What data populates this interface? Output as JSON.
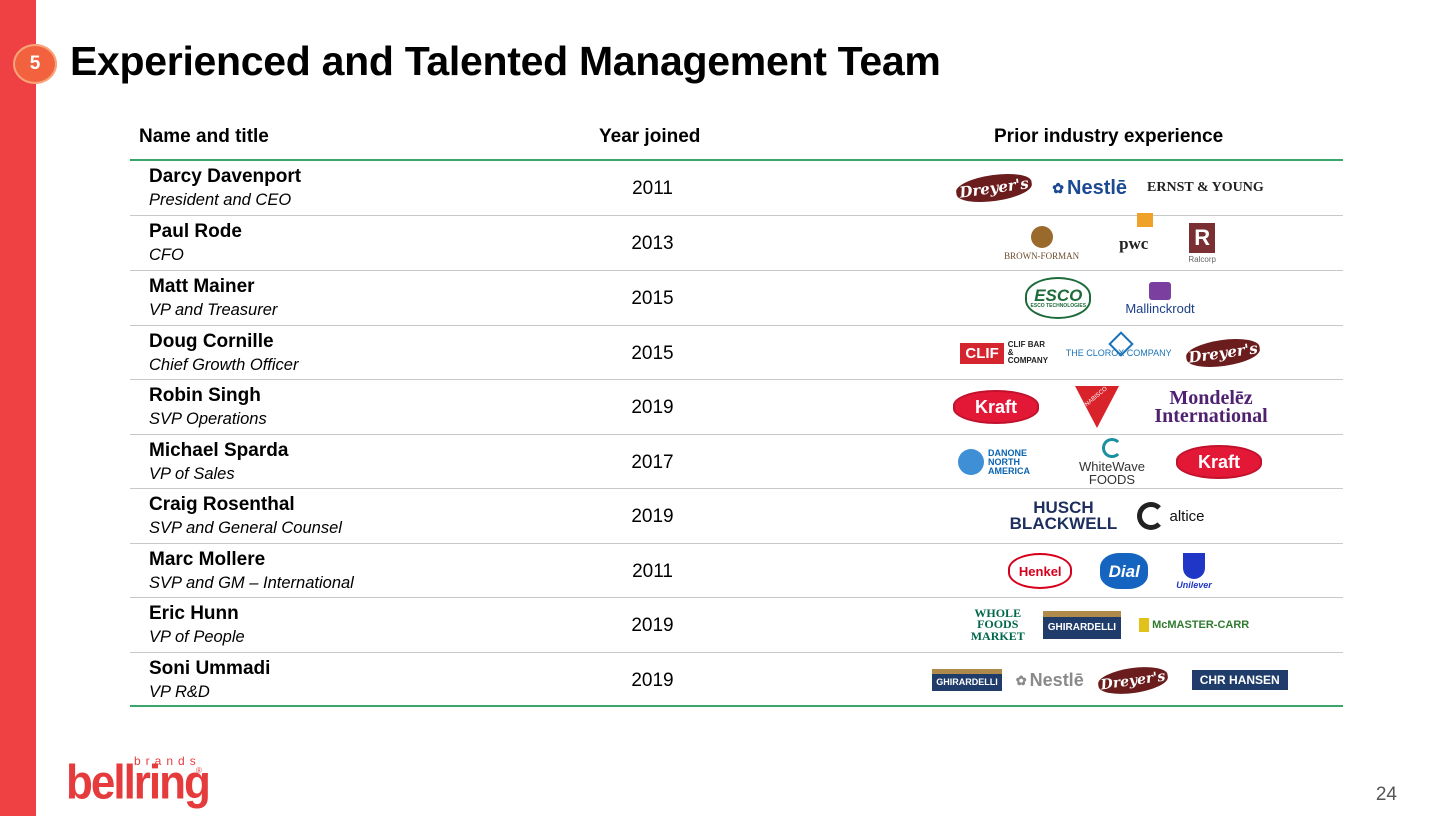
{
  "slide": {
    "section_number": "5",
    "title": "Experienced and Talented Management Team",
    "page_number": "24",
    "brand": {
      "word": "bellring",
      "sub": "brands",
      "mark": "®"
    }
  },
  "table": {
    "headers": [
      "Name and title",
      "Year joined",
      "Prior industry experience"
    ],
    "rows": [
      {
        "name": "Darcy Davenport",
        "title": "President and CEO",
        "year": "2011",
        "logos": [
          "Dreyer's",
          "Nestlē",
          "ERNST & YOUNG"
        ]
      },
      {
        "name": "Paul Rode",
        "title": "CFO",
        "year": "2013",
        "logos": [
          "BROWN-FORMAN",
          "pwc",
          "Ralcorp"
        ]
      },
      {
        "name": "Matt Mainer",
        "title": "VP and Treasurer",
        "year": "2015",
        "logos": [
          "ESCO TECHNOLOGIES",
          "Mallinckrodt"
        ]
      },
      {
        "name": "Doug Cornille",
        "title": "Chief Growth Officer",
        "year": "2015",
        "logos": [
          "CLIF",
          "CLIF BAR & COMPANY",
          "THE CLOROX COMPANY",
          "Dreyer's"
        ]
      },
      {
        "name": "Robin Singh",
        "title": "SVP Operations",
        "year": "2019",
        "logos": [
          "Kraft",
          "NABISCO",
          "Mondelēz International"
        ]
      },
      {
        "name": "Michael Sparda",
        "title": "VP of Sales",
        "year": "2017",
        "logos": [
          "DANONE NORTH AMERICA",
          "WhiteWave FOODS",
          "Kraft"
        ]
      },
      {
        "name": "Craig Rosenthal",
        "title": "SVP and General Counsel",
        "year": "2019",
        "logos": [
          "HUSCH BLACKWELL",
          "altice"
        ]
      },
      {
        "name": "Marc Mollere",
        "title": "SVP and GM – International",
        "year": "2011",
        "logos": [
          "Henkel",
          "Dial",
          "Unilever"
        ]
      },
      {
        "name": "Eric Hunn",
        "title": "VP of People",
        "year": "2019",
        "logos": [
          "WHOLE FOODS MARKET",
          "GHIRARDELLI",
          "McMASTER-CARR"
        ]
      },
      {
        "name": "Soni Ummadi",
        "title": "VP R&D",
        "year": "2019",
        "logos": [
          "GHIRARDELLI",
          "Nestlē",
          "Dreyer's",
          "CHR HANSEN"
        ]
      }
    ]
  },
  "colors": {
    "accent_red": "#ef4044",
    "badge_orange": "#f2623f",
    "rule_green": "#3aa66b"
  }
}
